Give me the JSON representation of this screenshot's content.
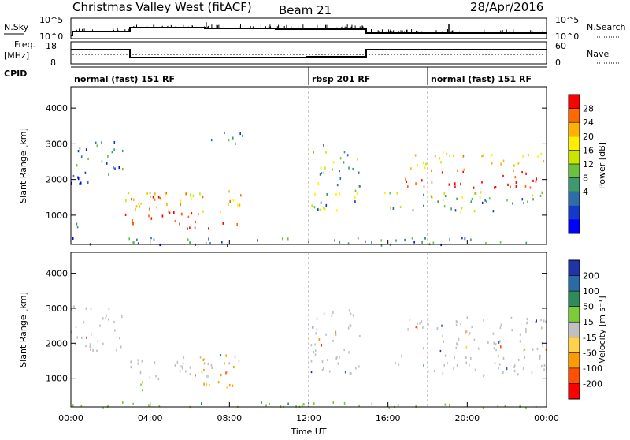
{
  "header": {
    "station": "Christmas Valley West (fitACF)",
    "beam": "Beam 21",
    "date": "28/Apr/2016"
  },
  "noise_panel": {
    "left_label": "N.Sky",
    "right_label": "N.Search",
    "left_ticks": [
      "10^5",
      "10^0"
    ],
    "right_ticks": [
      "10^5",
      "10^0"
    ]
  },
  "freq_panel": {
    "left_label_1": "Freq.",
    "left_label_2": "[MHz]",
    "right_label": "Nave",
    "left_ticks": [
      "18",
      "8"
    ],
    "right_ticks": [
      "60",
      "0"
    ]
  },
  "cpid_panel": {
    "label": "CPID",
    "segments": [
      {
        "name": "normal (fast) 151 RF",
        "start": 0,
        "end": 12
      },
      {
        "name": "rbsp 201 RF",
        "start": 12,
        "end": 18
      },
      {
        "name": "normal (fast) 151 RF",
        "start": 18,
        "end": 24
      }
    ]
  },
  "chart_data": [
    {
      "type": "heatmap",
      "name": "power",
      "ylabel": "Slant Range [km]",
      "ylim": [
        180,
        4600
      ],
      "xlim": [
        0,
        24
      ],
      "yticks": [
        "1000",
        "2000",
        "3000",
        "4000"
      ],
      "colorbar": {
        "label": "Power [dB]",
        "ticks": [
          "28",
          "24",
          "20",
          "16",
          "12",
          "8",
          "4"
        ],
        "colors": [
          "#ff0000",
          "#ff6a00",
          "#ffb000",
          "#ffee00",
          "#c8e600",
          "#6ec040",
          "#3c9a6e",
          "#2e6ea6",
          "#1438c8",
          "#0000ff"
        ]
      },
      "regions": [
        {
          "t0": 0.0,
          "t1": 2.6,
          "r0": 1800,
          "r1": 3100,
          "level": "low"
        },
        {
          "t0": 0.0,
          "t1": 0.4,
          "r0": 700,
          "r1": 1100,
          "level": "low"
        },
        {
          "t0": 2.7,
          "t1": 8.6,
          "r0": 650,
          "r1": 1700,
          "level": "high"
        },
        {
          "t0": 2.9,
          "t1": 4.6,
          "r0": 1450,
          "r1": 1700,
          "level": "high"
        },
        {
          "t0": 6.6,
          "t1": 8.7,
          "r0": 2900,
          "r1": 3400,
          "level": "low"
        },
        {
          "t0": 10.4,
          "t1": 11.6,
          "r0": 1000,
          "r1": 1100,
          "level": "low"
        },
        {
          "t0": 12.1,
          "t1": 14.6,
          "r0": 1100,
          "r1": 3000,
          "level": "mid"
        },
        {
          "t0": 15.8,
          "t1": 24.0,
          "r0": 1100,
          "r1": 1700,
          "level": "mid"
        },
        {
          "t0": 16.8,
          "t1": 24.0,
          "r0": 1800,
          "r1": 2800,
          "level": "high"
        },
        {
          "t0": 0.0,
          "t1": 24.0,
          "r0": 180,
          "r1": 400,
          "level": "low"
        }
      ]
    },
    {
      "type": "heatmap",
      "name": "velocity",
      "ylabel": "Slant Range [km]",
      "xlabel": "Time UT",
      "ylim": [
        180,
        4600
      ],
      "xlim": [
        0,
        24
      ],
      "yticks": [
        "1000",
        "2000",
        "3000",
        "4000"
      ],
      "xticks": [
        "00:00",
        "04:00",
        "08:00",
        "12:00",
        "16:00",
        "20:00",
        "00:00"
      ],
      "colorbar": {
        "label": "Velocity [m s⁻¹]",
        "ticks": [
          "200",
          "100",
          "50",
          "15",
          "-15",
          "-50",
          "-100",
          "-200"
        ],
        "colors": [
          "#2233aa",
          "#2a6aa6",
          "#2f8c5a",
          "#7ccc3a",
          "#c0c0c0",
          "#ffd24a",
          "#ff9a00",
          "#ff5000",
          "#ff0000"
        ]
      },
      "regions": [
        {
          "t0": 0.0,
          "t1": 2.6,
          "r0": 1800,
          "r1": 3100,
          "level": "grey"
        },
        {
          "t0": 2.9,
          "t1": 8.6,
          "r0": 1000,
          "r1": 1700,
          "level": "grey"
        },
        {
          "t0": 2.9,
          "t1": 4.0,
          "r0": 650,
          "r1": 1000,
          "level": "green"
        },
        {
          "t0": 6.5,
          "t1": 8.2,
          "r0": 750,
          "r1": 1700,
          "level": "orange"
        },
        {
          "t0": 12.1,
          "t1": 14.6,
          "r0": 1100,
          "r1": 3000,
          "level": "grey"
        },
        {
          "t0": 15.8,
          "t1": 24.0,
          "r0": 1100,
          "r1": 1700,
          "level": "grey"
        },
        {
          "t0": 16.8,
          "t1": 24.0,
          "r0": 1800,
          "r1": 2800,
          "level": "grey"
        },
        {
          "t0": 0.0,
          "t1": 24.0,
          "r0": 180,
          "r1": 350,
          "level": "green"
        }
      ]
    }
  ]
}
